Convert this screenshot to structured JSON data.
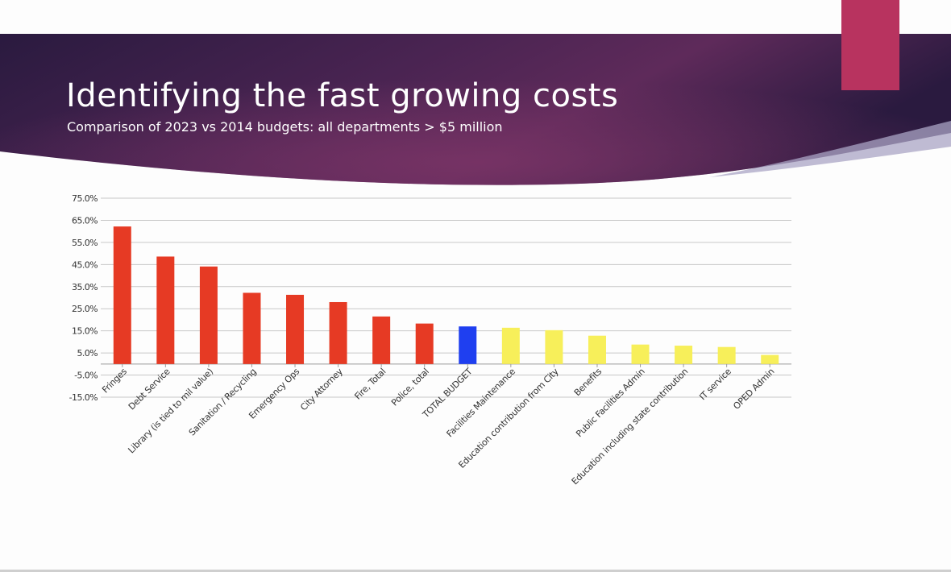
{
  "slide": {
    "title": "Identifying the fast growing costs",
    "subtitle": "Comparison of 2023 vs 2014 budgets: all departments > $5 million"
  },
  "colors": {
    "banner_dark": "#2a1a3f",
    "banner_mid": "#4a2452",
    "banner_light": "#6b3060",
    "accent": "#b8335f",
    "bar_red": "#e63a24",
    "bar_blue": "#1f3ff0",
    "bar_yellow": "#f7ef5a",
    "grid": "#c8c8c8",
    "text": "#333333"
  },
  "chart_data": {
    "type": "bar",
    "title": "",
    "xlabel": "",
    "ylabel": "",
    "ylim": [
      -15,
      75
    ],
    "yticks": [
      75,
      65,
      55,
      45,
      35,
      25,
      15,
      5,
      -5,
      -15
    ],
    "ytick_labels": [
      "75.0%",
      "65.0%",
      "55.0%",
      "45.0%",
      "35.0%",
      "25.0%",
      "15.0%",
      "5.0%",
      "-5.0%",
      "-15.0%"
    ],
    "grid": true,
    "legend": "none",
    "categories": [
      "Fringes",
      "Debt Service",
      "Library (is tied to mil value)",
      "Sanitation / Recycling",
      "Emergency Ops",
      "City Attorney",
      "Fire, Total",
      "Police, total",
      "TOTAL BUDGET",
      "Facilities Maintenance",
      "Education contribution from City",
      "Benefits",
      "Public Facilities Admin",
      "Education including state contribution",
      "IT service",
      "OPED Admin"
    ],
    "values": [
      62.2,
      48.6,
      44.1,
      32.2,
      31.3,
      28.0,
      21.5,
      18.3,
      17.0,
      16.4,
      15.3,
      12.8,
      8.8,
      8.3,
      7.7,
      4.1
    ],
    "bar_groups": [
      "red",
      "red",
      "red",
      "red",
      "red",
      "red",
      "red",
      "red",
      "blue",
      "yellow",
      "yellow",
      "yellow",
      "yellow",
      "yellow",
      "yellow",
      "yellow"
    ]
  }
}
